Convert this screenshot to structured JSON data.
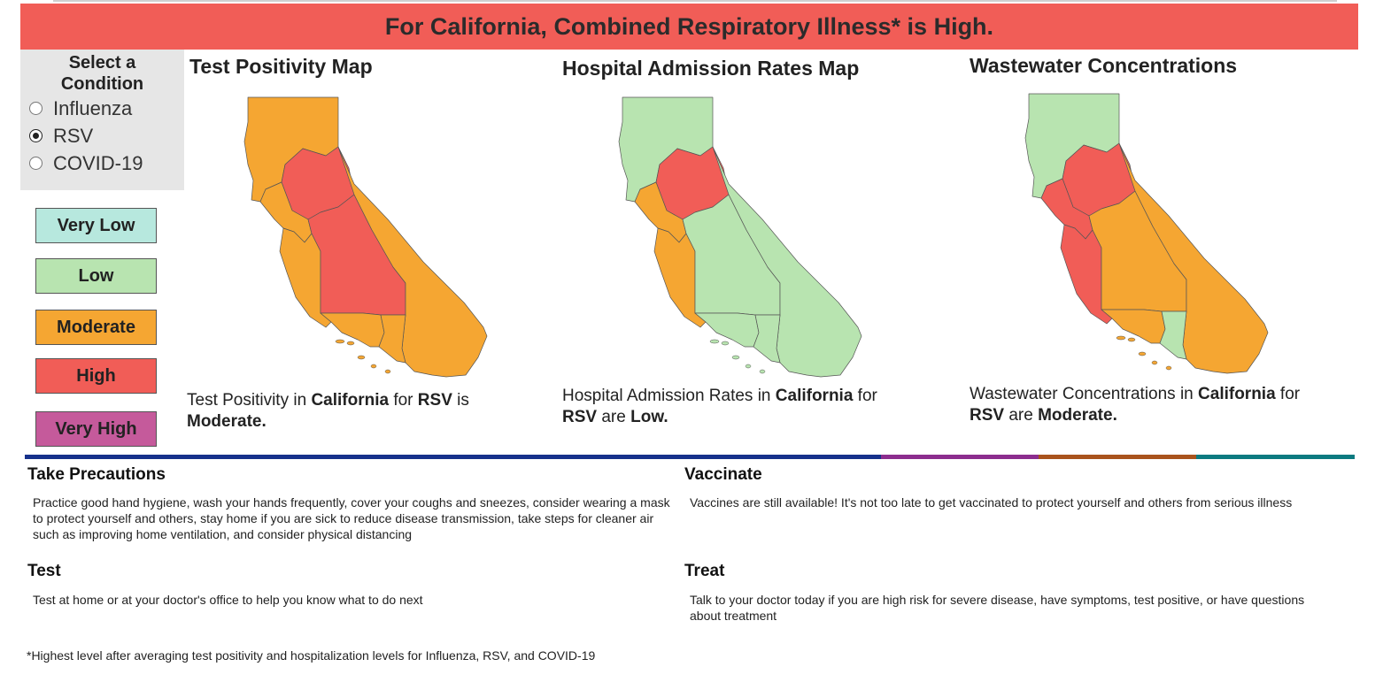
{
  "banner": {
    "text": "For California, Combined Respiratory Illness* is High."
  },
  "condition_selector": {
    "title": "Select a Condition",
    "options": [
      {
        "label": "Influenza",
        "selected": false
      },
      {
        "label": "RSV",
        "selected": true
      },
      {
        "label": "COVID-19",
        "selected": false
      }
    ]
  },
  "legend": [
    {
      "label": "Very Low",
      "color": "#b7e8de"
    },
    {
      "label": "Low",
      "color": "#b8e4b0"
    },
    {
      "label": "Moderate",
      "color": "#f5a632"
    },
    {
      "label": "High",
      "color": "#f15d57"
    },
    {
      "label": "Very High",
      "color": "#c55a9b"
    }
  ],
  "panels": [
    {
      "title": "Test Positivity Map",
      "caption": {
        "lead": "Test Positivity in ",
        "state": "California",
        "mid": " for ",
        "condition": "RSV",
        "verb": " is ",
        "level": "Moderate."
      },
      "regions": {
        "north": "Moderate",
        "northern_central": "High",
        "bay": "Moderate",
        "central_coast": "Moderate",
        "central_valley": "High",
        "eastern": "Moderate",
        "south_coast": "Moderate",
        "la": "Moderate"
      }
    },
    {
      "title": "Hospital Admission Rates Map",
      "caption": {
        "lead": "Hospital Admission Rates in ",
        "state": "California",
        "mid": " for ",
        "condition": "RSV",
        "verb": " are ",
        "level": "Low."
      },
      "regions": {
        "north": "Low",
        "northern_central": "High",
        "bay": "Moderate",
        "central_coast": "Moderate",
        "central_valley": "Low",
        "eastern": "Low",
        "south_coast": "Low",
        "la": "Low"
      }
    },
    {
      "title": "Wastewater Concentrations",
      "caption": {
        "lead": "Wastewater Concentrations in ",
        "state": "California",
        "mid": " for ",
        "condition": "RSV",
        "verb": " are ",
        "level": "Moderate."
      },
      "regions": {
        "north": "Low",
        "northern_central": "High",
        "bay": "High",
        "central_coast": "High",
        "central_valley": "Moderate",
        "eastern": "Moderate",
        "south_coast": "Moderate",
        "la": "Low"
      }
    }
  ],
  "level_colors": {
    "Very Low": "#b7e8de",
    "Low": "#b8e4b0",
    "Moderate": "#f5a632",
    "High": "#f15d57",
    "Very High": "#c55a9b"
  },
  "divider_colors": [
    "#16318b",
    "#8c2d8e",
    "#a9531c",
    "#0c7a80"
  ],
  "sections": {
    "precautions": {
      "title": "Take Precautions",
      "body": "Practice good hand hygiene, wash your hands frequently, cover your coughs and sneezes, consider wearing a mask to protect yourself and others, stay home if you are sick to reduce disease transmission, take steps for cleaner air such as improving home ventilation, and consider physical distancing"
    },
    "vaccinate": {
      "title": "Vaccinate",
      "body": "Vaccines are still available! It's not too late to get vaccinated to protect yourself and others from serious illness"
    },
    "test": {
      "title": "Test",
      "body": "Test at home or at your doctor's office to help you know what to do next"
    },
    "treat": {
      "title": "Treat",
      "body": "Talk to your doctor today if you are high risk for severe disease, have symptoms, test positive, or have questions about treatment"
    }
  },
  "footnote": "*Highest level after averaging test positivity and hospitalization levels for Influenza, RSV, and COVID-19"
}
